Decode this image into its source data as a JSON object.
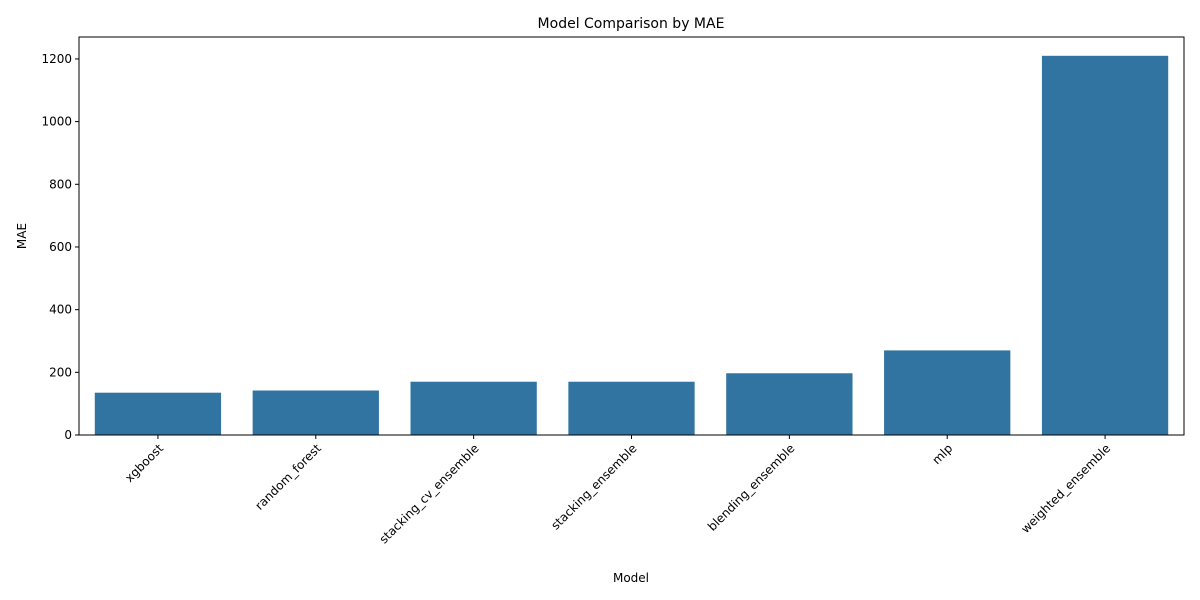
{
  "chart_data": {
    "type": "bar",
    "title": "Model Comparison by MAE",
    "xlabel": "Model",
    "ylabel": "MAE",
    "categories": [
      "xgboost",
      "random_forest",
      "stacking_cv_ensemble",
      "stacking_ensemble",
      "blending_ensemble",
      "mlp",
      "weighted_ensemble"
    ],
    "values": [
      135,
      142,
      170,
      170,
      197,
      270,
      1210
    ],
    "ylim": [
      0,
      1270
    ],
    "yticks": [
      0,
      200,
      400,
      600,
      800,
      1000,
      1200
    ],
    "grid": false,
    "bar_color": "#3274a1"
  }
}
